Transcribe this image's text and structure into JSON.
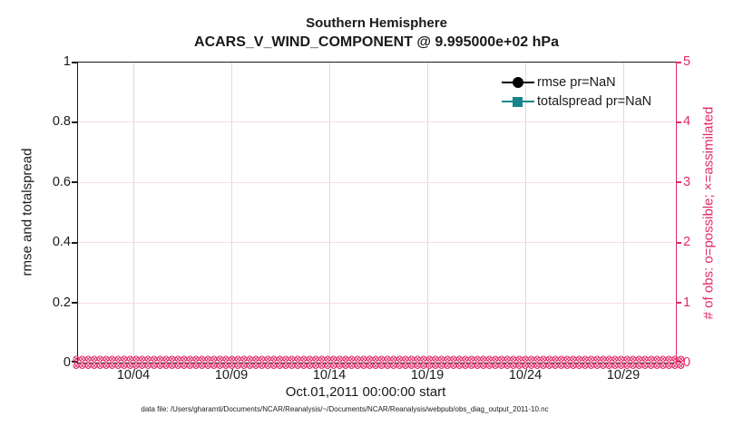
{
  "figure": {
    "title_line1": "Southern Hemisphere",
    "title_line2": "ACARS_V_WIND_COMPONENT @ 9.995000e+02 hPa"
  },
  "left_axis": {
    "label": "rmse and totalspread",
    "ticks": [
      "0",
      "0.2",
      "0.4",
      "0.6",
      "0.8",
      "1"
    ],
    "color": "#1a1a1a"
  },
  "right_axis": {
    "label": "# of obs: o=possible; ×=assimilated",
    "ticks": [
      "0",
      "1",
      "2",
      "3",
      "4",
      "5"
    ],
    "color": "#e22a6a"
  },
  "x_axis": {
    "ticks": [
      "10/04",
      "10/09",
      "10/14",
      "10/19",
      "10/24",
      "10/29"
    ],
    "label": "Oct.01,2011 00:00:00 start"
  },
  "legend": {
    "items": [
      {
        "label": "rmse pr=NaN",
        "marker": "filled-circle",
        "color": "#000000"
      },
      {
        "label": "totalspread pr=NaN",
        "marker": "filled-square",
        "color": "#17868a"
      }
    ]
  },
  "caption": "data file: /Users/gharamti/Documents/NCAR/Reanalysis/~/Documents/NCAR/Reanalysis/webpub/obs_diag_output_2011-10.nc",
  "colors": {
    "right_axis_pink": "#e22a6a",
    "grid_gray": "#dcdcdc",
    "grid_pink": "#f8dce8",
    "teal": "#17868a",
    "black": "#1a1a1a"
  },
  "chart_data": {
    "type": "line",
    "title": "Southern Hemisphere",
    "subtitle": "ACARS_V_WIND_COMPONENT @ 9.995000e+02 hPa",
    "xlabel": "Oct.01,2011 00:00:00 start",
    "ylabel_left": "rmse and totalspread",
    "ylabel_right": "# of obs: o=possible; ×=assimilated",
    "x_ticks": [
      "10/04",
      "10/09",
      "10/14",
      "10/19",
      "10/24",
      "10/29"
    ],
    "x_range": [
      "2011-10-01 00:00",
      "2011-10-31"
    ],
    "ylim_left": [
      0,
      1
    ],
    "ylim_right": [
      0,
      5
    ],
    "grid": true,
    "legend_position": "upper-right-inside",
    "series": [
      {
        "name": "rmse pr=NaN",
        "axis": "left",
        "marker": "filled-circle",
        "color": "#000000",
        "values": "all NaN - no curve drawn"
      },
      {
        "name": "totalspread pr=NaN",
        "axis": "left",
        "marker": "filled-square",
        "color": "#17868a",
        "values": "all NaN - no curve drawn"
      },
      {
        "name": "# of obs possible (o markers)",
        "axis": "right",
        "marker": "circle-outline",
        "color": "#e22a6a",
        "values": "0 at every observation time, Oct 1-31 2011 (dense marker band along y=0)"
      },
      {
        "name": "# of obs assimilated (x markers)",
        "axis": "right",
        "marker": "x-cross",
        "color": "#e22a6a",
        "values": "0 at every observation time, Oct 1-31 2011 (dense marker band along y=0)"
      }
    ]
  }
}
